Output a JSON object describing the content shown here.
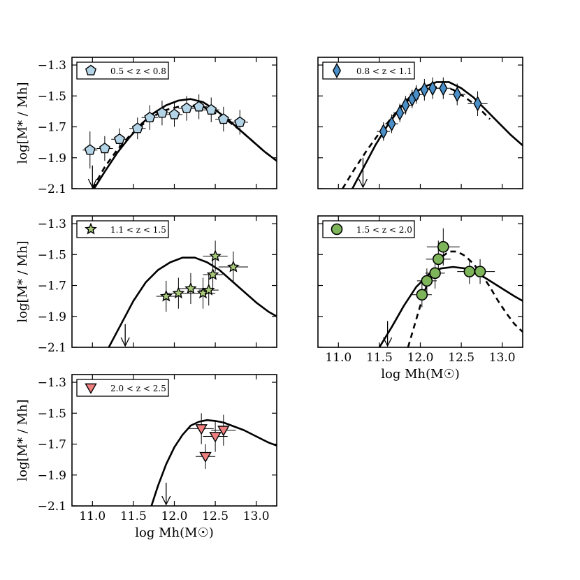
{
  "chart_data": [
    {
      "type": "scatter",
      "panel": "top-left",
      "legend": "0.5 < z < 0.8",
      "marker": "pentagon",
      "marker_color": "#b3d3e6",
      "ylabel": "log[M* / Mh]",
      "xlabel": "",
      "xlim": [
        10.75,
        13.25
      ],
      "ylim": [
        -2.1,
        -1.25
      ],
      "yticks": [
        "−1.3",
        "−1.5",
        "−1.7",
        "−1.9",
        "−2.1"
      ],
      "xticks": [],
      "upper_limit_arrow": {
        "x": 11.0,
        "y_top": -1.95
      },
      "series": [
        {
          "kind": "points",
          "x": [
            10.97,
            11.15,
            11.33,
            11.55,
            11.7,
            11.85,
            12.0,
            12.15,
            12.3,
            12.45,
            12.6,
            12.8
          ],
          "y": [
            -1.85,
            -1.84,
            -1.78,
            -1.71,
            -1.64,
            -1.61,
            -1.62,
            -1.58,
            -1.57,
            -1.59,
            -1.65,
            -1.67
          ],
          "xerr": [
            0.09,
            0.1,
            0.1,
            0.1,
            0.1,
            0.1,
            0.1,
            0.1,
            0.1,
            0.1,
            0.1,
            0.1
          ],
          "yerr": [
            0.12,
            0.08,
            0.07,
            0.07,
            0.08,
            0.08,
            0.08,
            0.08,
            0.08,
            0.08,
            0.08,
            0.08
          ]
        },
        {
          "kind": "solid-curve",
          "x": [
            11.02,
            11.15,
            11.3,
            11.45,
            11.6,
            11.75,
            11.9,
            12.05,
            12.2,
            12.35,
            12.5,
            12.65,
            12.8,
            12.95,
            13.1,
            13.25
          ],
          "y": [
            -2.1,
            -1.99,
            -1.87,
            -1.77,
            -1.68,
            -1.61,
            -1.56,
            -1.53,
            -1.52,
            -1.54,
            -1.59,
            -1.65,
            -1.72,
            -1.79,
            -1.86,
            -1.92
          ]
        },
        {
          "kind": "dashed-curve",
          "x": [
            11.0,
            11.15,
            11.3,
            11.45,
            11.6,
            11.75,
            11.9,
            12.05,
            12.2,
            12.35,
            12.5,
            12.65,
            12.8,
            12.95,
            13.1,
            13.25
          ],
          "y": [
            -2.1,
            -1.96,
            -1.85,
            -1.76,
            -1.69,
            -1.63,
            -1.59,
            -1.57,
            -1.56,
            -1.57,
            -1.61,
            -1.66,
            -1.72,
            -1.79,
            -1.86,
            -1.92
          ]
        }
      ]
    },
    {
      "type": "scatter",
      "panel": "top-right",
      "legend": "0.8 < z < 1.1",
      "marker": "diamond",
      "marker_color": "#4a8fc7",
      "ylabel": "",
      "xlabel": "",
      "xlim": [
        10.75,
        13.25
      ],
      "ylim": [
        -2.1,
        -1.25
      ],
      "yticks": [],
      "xticks": [],
      "upper_limit_arrow": {
        "x": 11.3,
        "y_top": -1.9
      },
      "series": [
        {
          "kind": "points",
          "x": [
            11.55,
            11.65,
            11.75,
            11.82,
            11.9,
            11.95,
            12.05,
            12.15,
            12.28,
            12.45,
            12.7
          ],
          "y": [
            -1.73,
            -1.68,
            -1.61,
            -1.56,
            -1.52,
            -1.49,
            -1.46,
            -1.45,
            -1.45,
            -1.49,
            -1.55
          ],
          "xerr": [
            0.08,
            0.08,
            0.08,
            0.08,
            0.08,
            0.08,
            0.08,
            0.08,
            0.1,
            0.1,
            0.12
          ],
          "yerr": [
            0.06,
            0.06,
            0.06,
            0.06,
            0.06,
            0.06,
            0.07,
            0.07,
            0.07,
            0.07,
            0.08
          ]
        },
        {
          "kind": "solid-curve",
          "x": [
            11.15,
            11.3,
            11.45,
            11.6,
            11.75,
            11.9,
            12.05,
            12.2,
            12.35,
            12.5,
            12.65,
            12.8,
            12.95,
            13.1,
            13.25
          ],
          "y": [
            -2.12,
            -1.97,
            -1.82,
            -1.69,
            -1.58,
            -1.49,
            -1.44,
            -1.41,
            -1.41,
            -1.45,
            -1.51,
            -1.59,
            -1.67,
            -1.75,
            -1.82
          ]
        },
        {
          "kind": "dashed-curve",
          "x": [
            11.05,
            11.2,
            11.35,
            11.5,
            11.65,
            11.8,
            11.95,
            12.1,
            12.25,
            12.4,
            12.55,
            12.7,
            12.85
          ],
          "y": [
            -2.1,
            -1.97,
            -1.85,
            -1.74,
            -1.64,
            -1.55,
            -1.49,
            -1.45,
            -1.44,
            -1.46,
            -1.51,
            -1.57,
            -1.65
          ]
        }
      ]
    },
    {
      "type": "scatter",
      "panel": "middle-left",
      "legend": "1.1 < z < 1.5",
      "marker": "star",
      "marker_color": "#a9c97a",
      "ylabel": "log[M* / Mh]",
      "xlabel": "",
      "xlim": [
        10.75,
        13.25
      ],
      "ylim": [
        -2.1,
        -1.25
      ],
      "yticks": [
        "−1.3",
        "−1.5",
        "−1.7",
        "−1.9",
        "−2.1"
      ],
      "xticks": [],
      "upper_limit_arrow": {
        "x": 11.4,
        "y_top": -1.95
      },
      "series": [
        {
          "kind": "points",
          "x": [
            11.9,
            12.05,
            12.2,
            12.35,
            12.42,
            12.47,
            12.5,
            12.72
          ],
          "y": [
            -1.77,
            -1.75,
            -1.72,
            -1.75,
            -1.73,
            -1.63,
            -1.51,
            -1.58
          ],
          "xerr": [
            0.12,
            0.15,
            0.15,
            0.15,
            0.12,
            0.12,
            0.15,
            0.18
          ],
          "yerr": [
            0.1,
            0.1,
            0.1,
            0.1,
            0.1,
            0.1,
            0.1,
            0.1
          ]
        },
        {
          "kind": "solid-curve",
          "x": [
            11.2,
            11.35,
            11.5,
            11.65,
            11.8,
            11.95,
            12.1,
            12.25,
            12.4,
            12.55,
            12.7,
            12.85,
            13.0,
            13.15,
            13.25
          ],
          "y": [
            -2.1,
            -1.95,
            -1.8,
            -1.68,
            -1.6,
            -1.55,
            -1.52,
            -1.52,
            -1.55,
            -1.6,
            -1.67,
            -1.74,
            -1.81,
            -1.87,
            -1.9
          ]
        }
      ]
    },
    {
      "type": "scatter",
      "panel": "middle-right",
      "legend": "1.5 < z < 2.0",
      "marker": "circle",
      "marker_color": "#7fb55a",
      "ylabel": "",
      "xlabel": "log Mh(M☉)",
      "xlim": [
        10.75,
        13.25
      ],
      "ylim": [
        -2.1,
        -1.25
      ],
      "yticks": [],
      "xticks": [
        "11.0",
        "11.5",
        "12.0",
        "12.5",
        "13.0"
      ],
      "upper_limit_arrow": {
        "x": 11.6,
        "y_top": -1.93
      },
      "series": [
        {
          "kind": "points",
          "x": [
            12.02,
            12.08,
            12.18,
            12.22,
            12.28,
            12.6,
            12.73
          ],
          "y": [
            -1.76,
            -1.67,
            -1.62,
            -1.53,
            -1.45,
            -1.61,
            -1.61
          ],
          "xerr": [
            0.12,
            0.12,
            0.12,
            0.15,
            0.2,
            0.15,
            0.18
          ],
          "yerr": [
            0.08,
            0.08,
            0.1,
            0.12,
            0.12,
            0.08,
            0.08
          ]
        },
        {
          "kind": "solid-curve",
          "x": [
            11.5,
            11.65,
            11.8,
            11.95,
            12.1,
            12.25,
            12.4,
            12.55,
            12.7,
            12.85,
            13.0,
            13.15,
            13.25
          ],
          "y": [
            -2.1,
            -1.97,
            -1.83,
            -1.71,
            -1.63,
            -1.59,
            -1.58,
            -1.59,
            -1.62,
            -1.67,
            -1.72,
            -1.77,
            -1.8
          ]
        },
        {
          "kind": "dashed-curve",
          "x": [
            11.85,
            11.95,
            12.05,
            12.15,
            12.25,
            12.35,
            12.45,
            12.55,
            12.65,
            12.75,
            12.85,
            12.95,
            13.05,
            13.15,
            13.25
          ],
          "y": [
            -2.1,
            -1.92,
            -1.74,
            -1.6,
            -1.52,
            -1.48,
            -1.48,
            -1.51,
            -1.56,
            -1.63,
            -1.71,
            -1.8,
            -1.88,
            -1.95,
            -2.0
          ]
        }
      ]
    },
    {
      "type": "scatter",
      "panel": "bottom-left",
      "legend": "2.0 < z < 2.5",
      "marker": "triangle-down",
      "marker_color": "#f08080",
      "ylabel": "log[M* / Mh]",
      "xlabel": "log Mh(M☉)",
      "xlim": [
        10.75,
        13.25
      ],
      "ylim": [
        -2.1,
        -1.25
      ],
      "yticks": [
        "−1.3",
        "−1.5",
        "−1.7",
        "−1.9",
        "−2.1"
      ],
      "xticks": [
        "11.0",
        "11.5",
        "12.0",
        "12.5",
        "13.0"
      ],
      "upper_limit_arrow": {
        "x": 11.9,
        "y_top": -1.95
      },
      "series": [
        {
          "kind": "points",
          "x": [
            12.33,
            12.38,
            12.5,
            12.6
          ],
          "y": [
            -1.6,
            -1.78,
            -1.65,
            -1.61
          ],
          "xerr": [
            0.15,
            0.12,
            0.15,
            0.15
          ],
          "yerr": [
            0.1,
            0.08,
            0.1,
            0.1
          ]
        },
        {
          "kind": "solid-curve",
          "x": [
            11.72,
            11.8,
            11.9,
            12.0,
            12.1,
            12.2,
            12.3,
            12.4,
            12.5,
            12.6,
            12.7,
            12.85,
            13.0,
            13.15,
            13.25
          ],
          "y": [
            -2.1,
            -1.97,
            -1.83,
            -1.72,
            -1.64,
            -1.58,
            -1.555,
            -1.545,
            -1.55,
            -1.56,
            -1.58,
            -1.61,
            -1.65,
            -1.69,
            -1.71
          ]
        }
      ]
    }
  ]
}
